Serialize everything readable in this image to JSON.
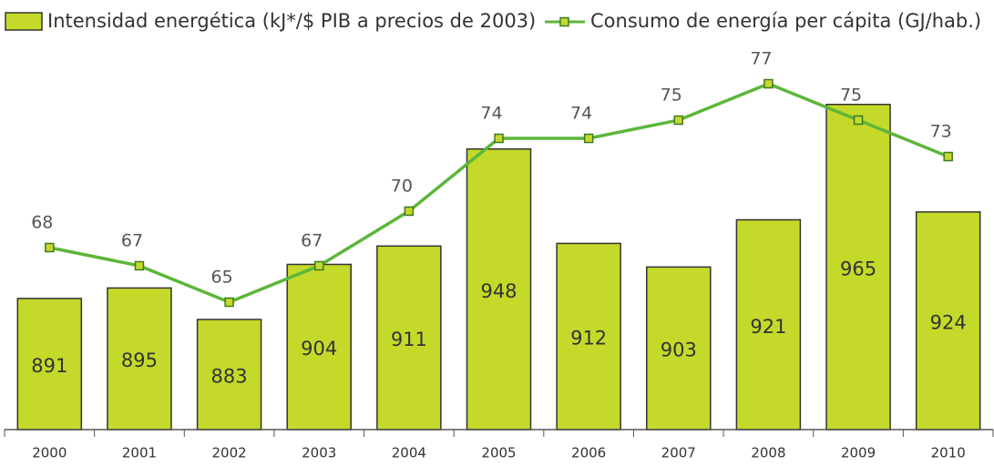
{
  "chart_data": {
    "type": "bar-line",
    "categories": [
      "2000",
      "2001",
      "2002",
      "2003",
      "2004",
      "2005",
      "2006",
      "2007",
      "2008",
      "2009",
      "2010"
    ],
    "series": [
      {
        "name": "Intensidad energética (kJ*/$ PIB a precios de 2003)",
        "color": "#c5d92b",
        "type": "bar",
        "values": [
          891,
          895,
          883,
          904,
          911,
          948,
          912,
          903,
          921,
          965,
          924
        ]
      },
      {
        "name": "Consumo de energía per cápita (GJ/hab.)",
        "color": "#5cb63a",
        "type": "line",
        "axis": "y2",
        "values": [
          68,
          67,
          65,
          67,
          70,
          74,
          74,
          75,
          77,
          75,
          73
        ]
      }
    ],
    "ylim": [
      841,
      984
    ],
    "y2lim": [
      58,
      78.6
    ]
  }
}
